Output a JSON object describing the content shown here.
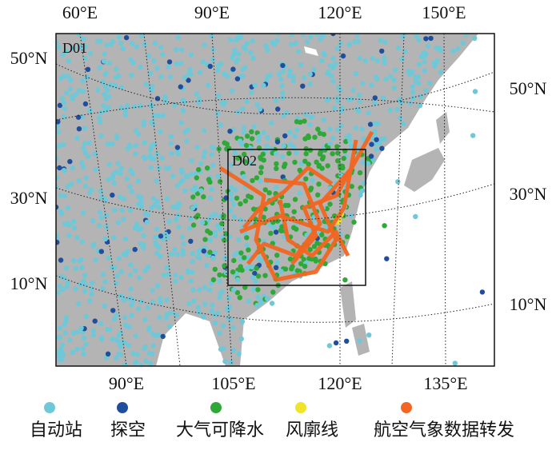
{
  "top_labels": [
    "60°E",
    "90°E",
    "120°E",
    "150°E"
  ],
  "bottom_labels": [
    "90°E",
    "105°E",
    "120°E",
    "135°E"
  ],
  "left_labels": [
    "50°N",
    "30°N",
    "10°N"
  ],
  "right_labels": [
    "50°N",
    "30°N",
    "10°N"
  ],
  "domains": [
    "D01",
    "D02"
  ],
  "legend": [
    {
      "name": "自动站",
      "color": "#6ec8d8"
    },
    {
      "name": "探空",
      "color": "#1f4e9c"
    },
    {
      "name": "大气可降水",
      "color": "#2ea836"
    },
    {
      "name": "风廓线",
      "color": "#f0e428"
    },
    {
      "name": "航空气象数据转发",
      "color": "#f26522"
    }
  ]
}
